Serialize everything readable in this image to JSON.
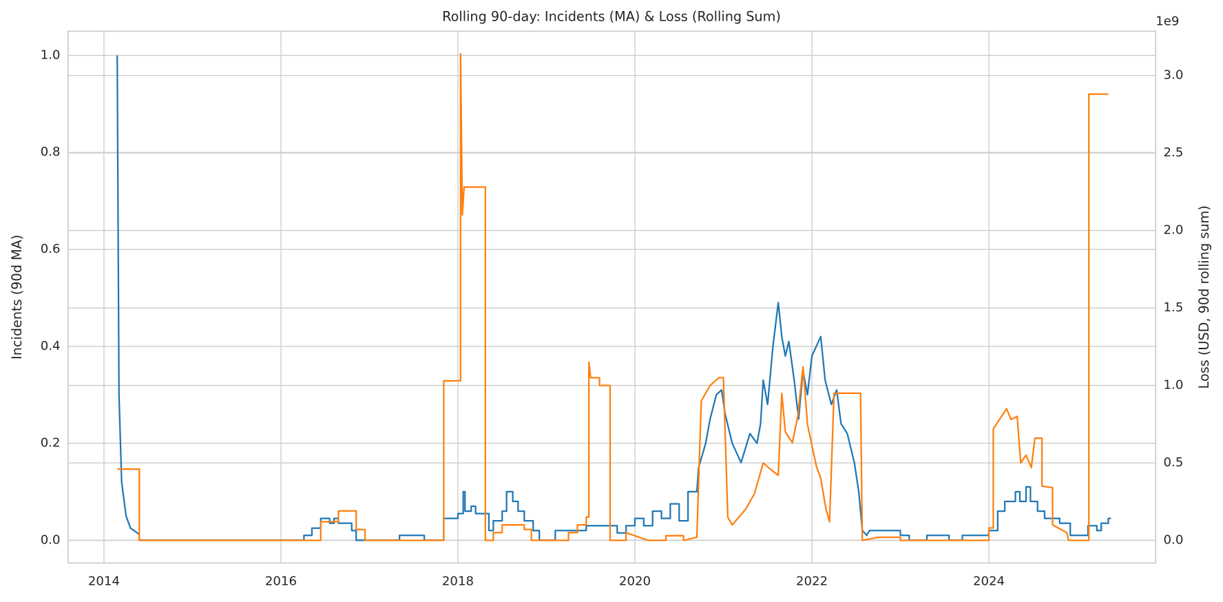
{
  "chart_data": {
    "type": "line",
    "title": "Rolling 90-day: Incidents (MA) & Loss (Rolling Sum)",
    "ylabel": "Incidents (90d MA)",
    "y2label": "Loss (USD, 90d rolling sum)",
    "y2_offset_text": "1e9",
    "xlim": [
      2013.595,
      2025.885
    ],
    "xticks": [
      2014,
      2016,
      2018,
      2020,
      2022,
      2024
    ],
    "ylim": [
      -0.047,
      1.05
    ],
    "yticks": [
      {
        "value": 0,
        "label": "0.0"
      },
      0.2,
      0.4,
      0.6,
      0.8,
      {
        "value": 1,
        "label": "1.0"
      }
    ],
    "y2lim": [
      -0.146,
      3.286
    ],
    "y2ticks": [
      {
        "value": 0,
        "label": "0.0"
      },
      0.5,
      {
        "value": 1,
        "label": "1.0"
      },
      1.5,
      {
        "value": 2,
        "label": "2.0"
      },
      2.5,
      {
        "value": 3,
        "label": "3.0"
      }
    ],
    "grid": true,
    "series": [
      {
        "color": "#1f77b4",
        "x": [
          2014.15,
          2014.17,
          2014.2,
          2014.25,
          2014.3,
          2014.4,
          2014.4,
          2016.26,
          2016.26,
          2016.35,
          2016.35,
          2016.45,
          2016.45,
          2016.55,
          2016.55,
          2016.6,
          2016.6,
          2016.65,
          2016.65,
          2016.8,
          2016.8,
          2016.85,
          2016.85,
          2017.34,
          2017.34,
          2017.62,
          2017.62,
          2017.84,
          2017.84,
          2018.0,
          2018.0,
          2018.06,
          2018.06,
          2018.08,
          2018.08,
          2018.15,
          2018.15,
          2018.2,
          2018.2,
          2018.35,
          2018.35,
          2018.4,
          2018.4,
          2018.5,
          2018.5,
          2018.55,
          2018.55,
          2018.62,
          2018.62,
          2018.68,
          2018.68,
          2018.75,
          2018.75,
          2018.85,
          2018.85,
          2018.92,
          2018.92,
          2019.1,
          2019.1,
          2019.45,
          2019.45,
          2019.8,
          2019.8,
          2019.9,
          2019.9,
          2020.0,
          2020.0,
          2020.1,
          2020.1,
          2020.2,
          2020.2,
          2020.3,
          2020.3,
          2020.4,
          2020.4,
          2020.5,
          2020.5,
          2020.6,
          2020.6,
          2020.7,
          2020.72,
          2020.8,
          2020.85,
          2020.92,
          2020.98,
          2021.02,
          2021.1,
          2021.2,
          2021.3,
          2021.38,
          2021.42,
          2021.45,
          2021.5,
          2021.56,
          2021.62,
          2021.66,
          2021.7,
          2021.74,
          2021.8,
          2021.85,
          2021.9,
          2021.95,
          2022.0,
          2022.1,
          2022.15,
          2022.22,
          2022.28,
          2022.33,
          2022.4,
          2022.48,
          2022.53,
          2022.57,
          2022.62,
          2022.65,
          2023.0,
          2023.0,
          2023.1,
          2023.1,
          2023.3,
          2023.3,
          2023.55,
          2023.55,
          2023.7,
          2023.7,
          2024.0,
          2024.0,
          2024.1,
          2024.1,
          2024.18,
          2024.18,
          2024.3,
          2024.3,
          2024.35,
          2024.35,
          2024.42,
          2024.42,
          2024.47,
          2024.47,
          2024.55,
          2024.55,
          2024.63,
          2024.63,
          2024.8,
          2024.8,
          2024.92,
          2024.92,
          2025.12,
          2025.12,
          2025.22,
          2025.22,
          2025.27,
          2025.27,
          2025.35,
          2025.35,
          2025.38
        ],
        "values": [
          1.0,
          0.3,
          0.12,
          0.05,
          0.025,
          0.012,
          0,
          0,
          0.01,
          0.01,
          0.025,
          0.025,
          0.045,
          0.045,
          0.035,
          0.035,
          0.045,
          0.045,
          0.035,
          0.035,
          0.02,
          0.02,
          0,
          0,
          0.01,
          0.01,
          0,
          0,
          0.045,
          0.045,
          0.055,
          0.055,
          0.1,
          0.1,
          0.06,
          0.06,
          0.07,
          0.07,
          0.055,
          0.055,
          0.02,
          0.02,
          0.04,
          0.04,
          0.06,
          0.06,
          0.1,
          0.1,
          0.08,
          0.08,
          0.06,
          0.06,
          0.04,
          0.04,
          0.02,
          0.02,
          0,
          0,
          0.02,
          0.02,
          0.03,
          0.03,
          0.015,
          0.015,
          0.03,
          0.03,
          0.045,
          0.045,
          0.03,
          0.03,
          0.06,
          0.06,
          0.045,
          0.045,
          0.075,
          0.075,
          0.04,
          0.04,
          0.1,
          0.1,
          0.15,
          0.2,
          0.25,
          0.3,
          0.31,
          0.26,
          0.2,
          0.16,
          0.22,
          0.2,
          0.24,
          0.33,
          0.28,
          0.4,
          0.49,
          0.42,
          0.38,
          0.41,
          0.33,
          0.25,
          0.35,
          0.3,
          0.38,
          0.42,
          0.33,
          0.28,
          0.31,
          0.24,
          0.22,
          0.16,
          0.1,
          0.02,
          0.01,
          0.02,
          0.02,
          0.01,
          0.01,
          0,
          0,
          0.01,
          0.01,
          0,
          0,
          0.01,
          0.01,
          0.02,
          0.02,
          0.06,
          0.06,
          0.08,
          0.08,
          0.1,
          0.1,
          0.08,
          0.08,
          0.11,
          0.11,
          0.08,
          0.08,
          0.06,
          0.06,
          0.045,
          0.045,
          0.035,
          0.035,
          0.01,
          0.01,
          0.03,
          0.03,
          0.02,
          0.02,
          0.035,
          0.035,
          0.045,
          0.045
        ]
      },
      {
        "color": "#ff7f0e",
        "axis": "y2",
        "x": [
          2014.15,
          2014.4,
          2014.4,
          2016.45,
          2016.45,
          2016.65,
          2016.65,
          2016.85,
          2016.85,
          2016.95,
          2016.95,
          2017.84,
          2017.84,
          2018.03,
          2018.03,
          2018.05,
          2018.07,
          2018.31,
          2018.31,
          2018.4,
          2018.4,
          2018.5,
          2018.5,
          2018.75,
          2018.75,
          2018.83,
          2018.83,
          2019.25,
          2019.25,
          2019.35,
          2019.35,
          2019.45,
          2019.45,
          2019.48,
          2019.48,
          2019.5,
          2019.6,
          2019.6,
          2019.72,
          2019.72,
          2019.9,
          2019.9,
          2020.15,
          2020.35,
          2020.35,
          2020.55,
          2020.55,
          2020.7,
          2020.75,
          2020.85,
          2020.95,
          2021.0,
          2021.05,
          2021.1,
          2021.25,
          2021.35,
          2021.45,
          2021.55,
          2021.62,
          2021.66,
          2021.7,
          2021.78,
          2021.84,
          2021.9,
          2021.95,
          2022.05,
          2022.1,
          2022.16,
          2022.2,
          2022.25,
          2022.55,
          2022.57,
          2022.75,
          2023.0,
          2023.0,
          2024.0,
          2024.0,
          2024.05,
          2024.05,
          2024.2,
          2024.25,
          2024.32,
          2024.36,
          2024.42,
          2024.48,
          2024.52,
          2024.6,
          2024.6,
          2024.72,
          2024.72,
          2024.88,
          2024.9,
          2025.13,
          2025.13,
          2025.35
        ],
        "values": [
          0.46,
          0.46,
          0,
          0,
          0.12,
          0.12,
          0.19,
          0.19,
          0.07,
          0.07,
          0,
          0,
          1.03,
          1.03,
          3.14,
          2.1,
          2.28,
          2.28,
          0,
          0,
          0.05,
          0.05,
          0.1,
          0.1,
          0.07,
          0.07,
          0,
          0,
          0.05,
          0.05,
          0.1,
          0.1,
          0.15,
          0.15,
          1.15,
          1.05,
          1.05,
          1.0,
          1.0,
          0,
          0,
          0.05,
          0,
          0,
          0.03,
          0.03,
          0,
          0.02,
          0.9,
          1.0,
          1.05,
          1.05,
          0.15,
          0.1,
          0.2,
          0.3,
          0.5,
          0.45,
          0.42,
          0.95,
          0.7,
          0.63,
          0.8,
          1.12,
          0.75,
          0.48,
          0.4,
          0.2,
          0.12,
          0.95,
          0.95,
          0,
          0.02,
          0.02,
          0,
          0,
          0.08,
          0.08,
          0.72,
          0.85,
          0.78,
          0.8,
          0.5,
          0.55,
          0.47,
          0.66,
          0.66,
          0.35,
          0.34,
          0.1,
          0.05,
          0,
          0,
          2.88,
          2.88
        ]
      }
    ]
  }
}
